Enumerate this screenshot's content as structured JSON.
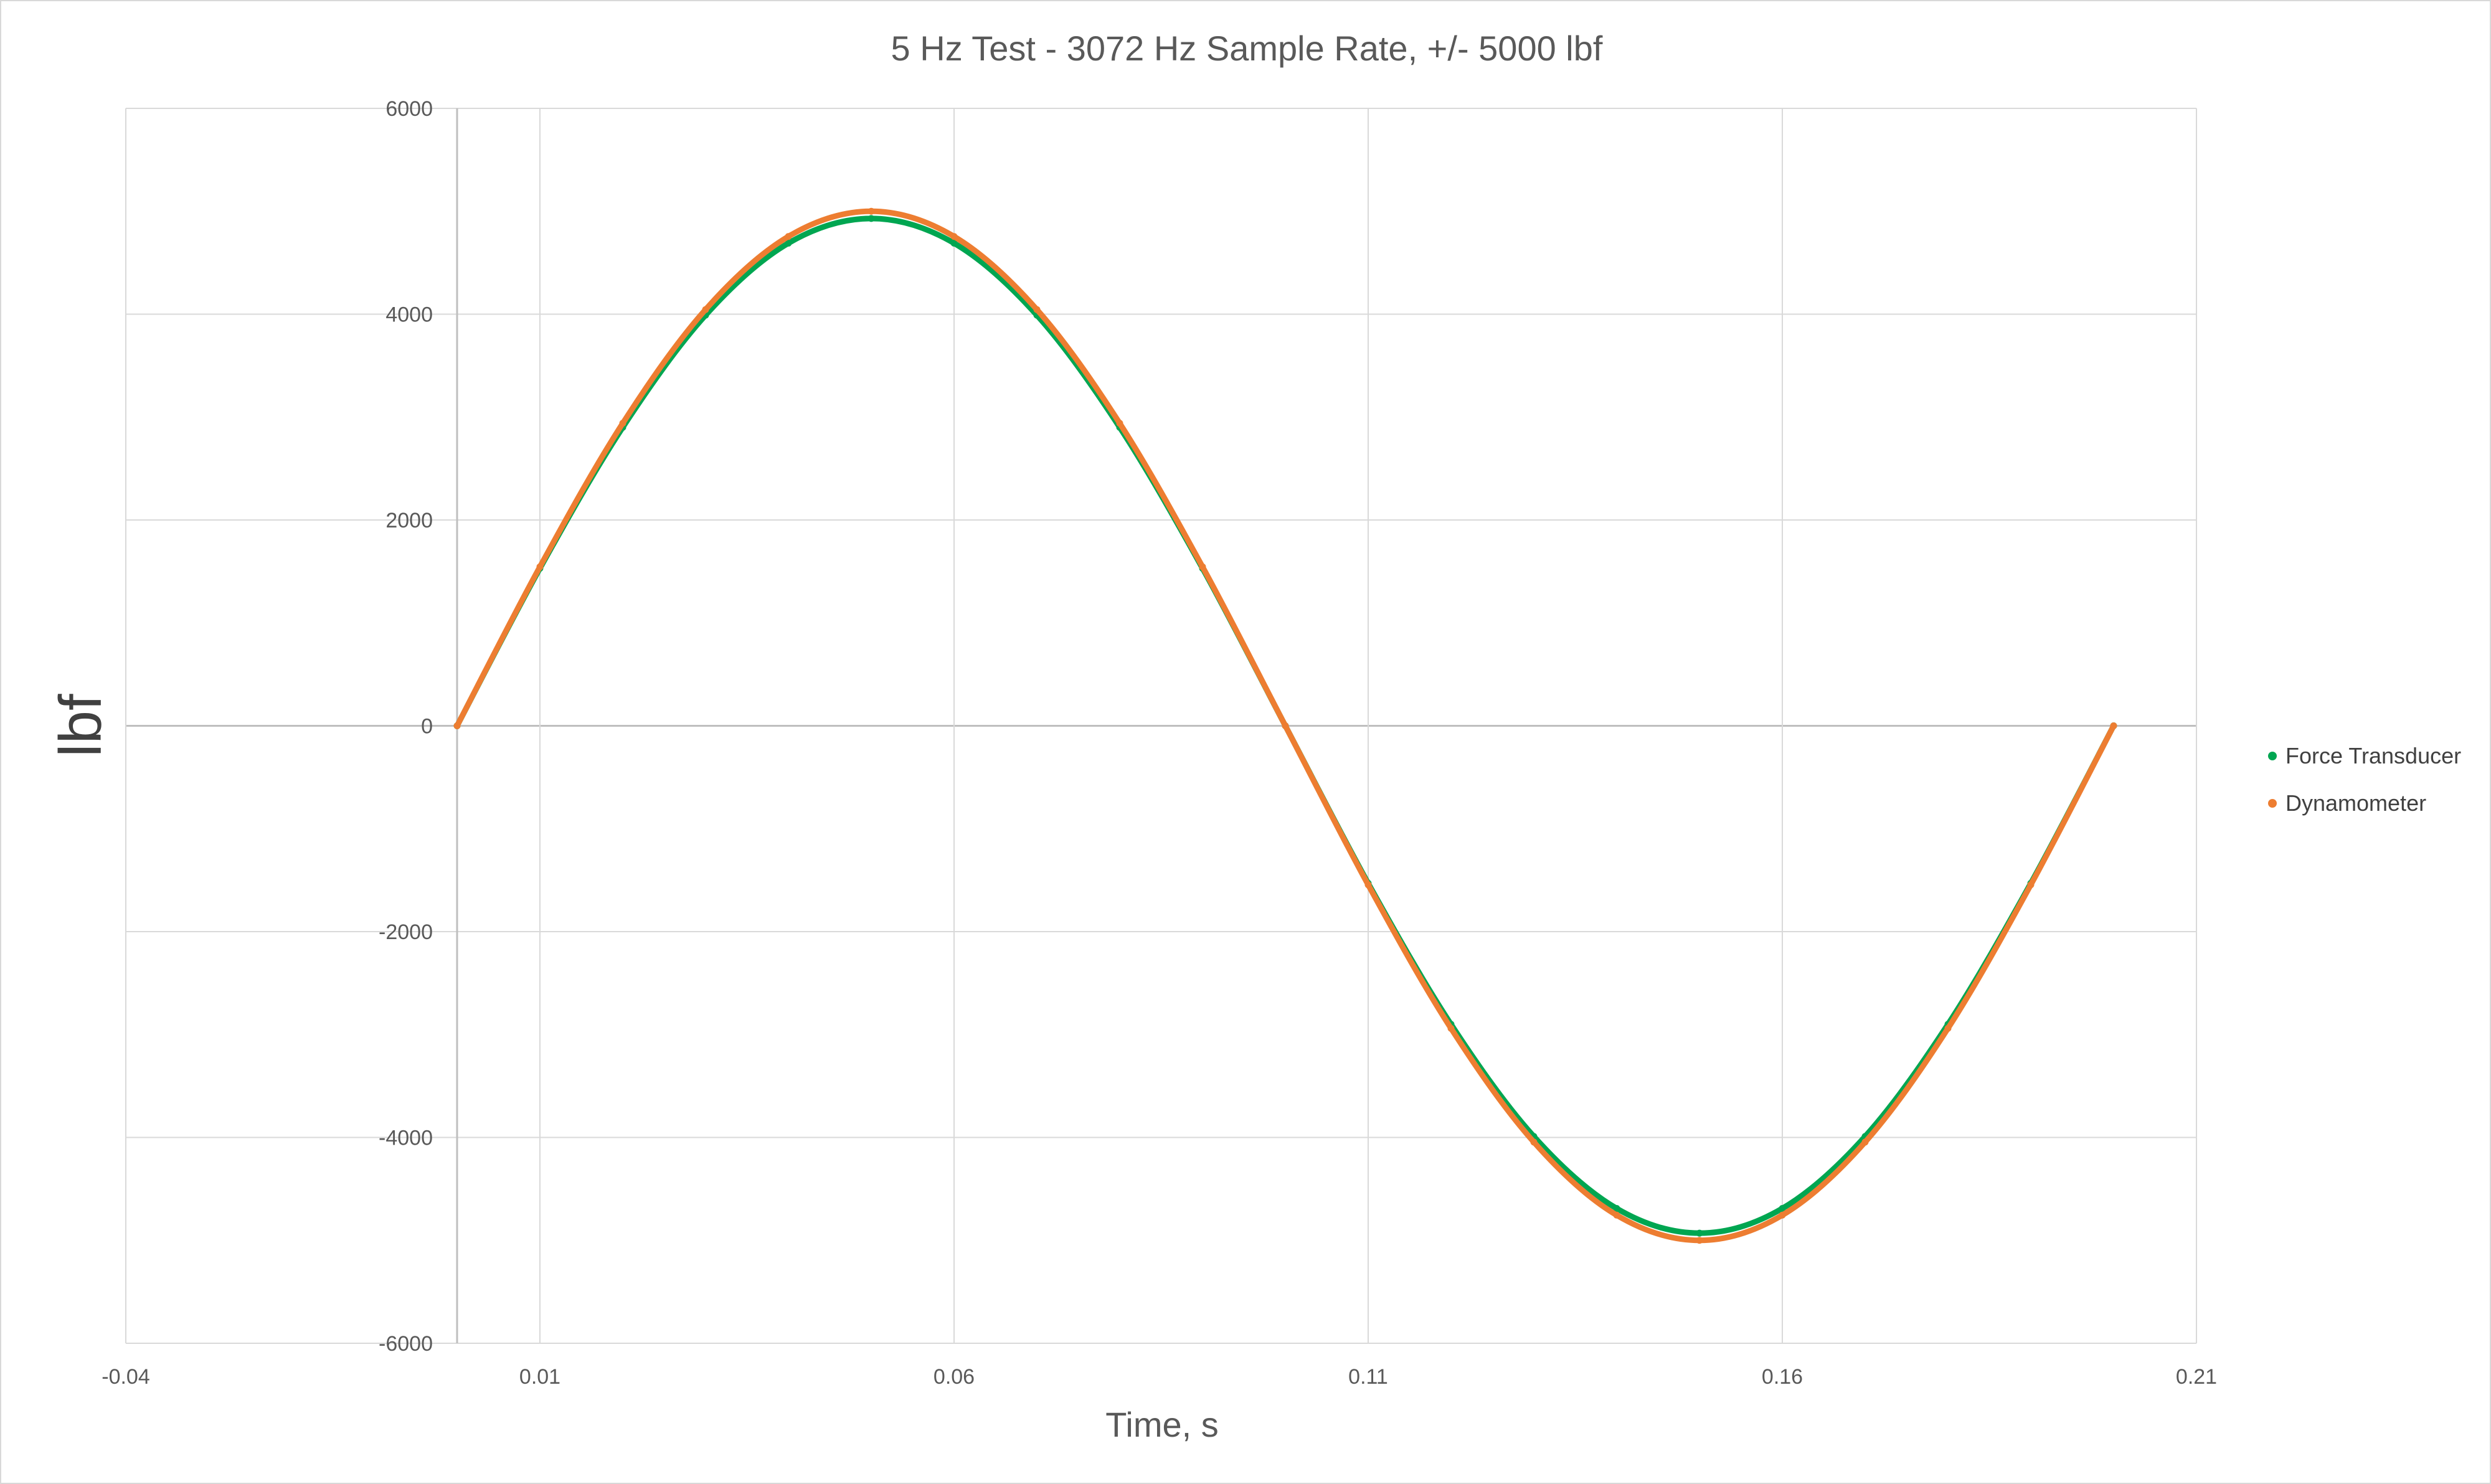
{
  "chart_data": {
    "type": "scatter",
    "title": "5 Hz Test - 3072 Hz Sample Rate, +/- 5000 lbf",
    "xlabel": "Time, s",
    "ylabel": "lbf",
    "xlim": [
      -0.04,
      0.21
    ],
    "ylim": [
      -6000,
      6000
    ],
    "x_ticks": [
      -0.04,
      0.01,
      0.06,
      0.11,
      0.16,
      0.21
    ],
    "x_tick_labels": [
      "-0.04",
      "0.01",
      "0.06",
      "0.11",
      "0.16",
      "0.21"
    ],
    "y_ticks": [
      -6000,
      -4000,
      -2000,
      0,
      2000,
      4000,
      6000
    ],
    "y_tick_labels": [
      "-6000",
      "-4000",
      "-2000",
      "0",
      "2000",
      "4000",
      "6000"
    ],
    "grid": true,
    "legend_position": "right",
    "series": [
      {
        "name": "Force Transducer",
        "color": "#00a651",
        "x": [
          0.0,
          0.01,
          0.02,
          0.03,
          0.04,
          0.05,
          0.06,
          0.07,
          0.08,
          0.09,
          0.1,
          0.11,
          0.12,
          0.13,
          0.14,
          0.15,
          0.16,
          0.17,
          0.18,
          0.19,
          0.2
        ],
        "y": [
          0,
          1530,
          2900,
          3990,
          4690,
          4930,
          4690,
          3990,
          2900,
          1530,
          0,
          -1530,
          -2900,
          -3990,
          -4690,
          -4930,
          -4690,
          -3990,
          -2900,
          -1530,
          0
        ]
      },
      {
        "name": "Dynamometer",
        "color": "#ed7d31",
        "x": [
          0.0,
          0.01,
          0.02,
          0.03,
          0.04,
          0.05,
          0.06,
          0.07,
          0.08,
          0.09,
          0.1,
          0.11,
          0.12,
          0.13,
          0.14,
          0.15,
          0.16,
          0.17,
          0.18,
          0.19,
          0.2
        ],
        "y": [
          0,
          1545,
          2940,
          4045,
          4755,
          5000,
          4755,
          4045,
          2940,
          1545,
          0,
          -1545,
          -2940,
          -4045,
          -4755,
          -5000,
          -4755,
          -4045,
          -2940,
          -1545,
          0
        ]
      }
    ]
  }
}
